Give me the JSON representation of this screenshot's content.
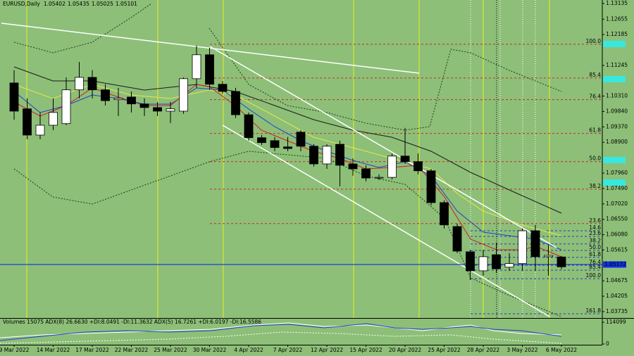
{
  "chart_data": {
    "type": "candlestick",
    "symbol": "EURUSD,Daily",
    "categories": [
      "9 Mar 2022",
      null,
      null,
      "14 Mar 2022",
      null,
      null,
      "17 Mar 2022",
      null,
      null,
      "22 Mar 2022",
      null,
      null,
      "25 Mar 2022",
      null,
      null,
      "30 Mar 2022",
      null,
      null,
      "4 Apr 2022",
      null,
      null,
      "7 Apr 2022",
      null,
      null,
      "12 Apr 2022",
      null,
      null,
      "15 Apr 2022",
      null,
      null,
      "20 Apr 2022",
      null,
      null,
      "25 Apr 2022",
      null,
      null,
      "28 Apr 2022",
      null,
      null,
      "3 May 2022",
      null,
      null,
      "6 May 2022"
    ],
    "open": [
      1.1071,
      1.0992,
      1.0912,
      1.0942,
      1.0947,
      1.105,
      1.1088,
      1.105,
      1.102,
      1.1028,
      1.1007,
      1.0996,
      1.0985,
      1.0985,
      1.1084,
      1.1157,
      1.1067,
      1.1045,
      1.0974,
      1.0904,
      1.0895,
      1.0876,
      1.0921,
      1.0878,
      1.0824,
      1.0884,
      1.0824,
      1.0809,
      1.0781,
      1.0783,
      1.0848,
      1.0831,
      1.0803,
      1.0706,
      1.0633,
      1.0556,
      1.0498,
      1.0547,
      1.0509,
      1.052,
      1.062,
      1.0541,
      1.05402
    ],
    "high": [
      1.111,
      1.1024,
      1.0981,
      1.1024,
      1.1088,
      1.1135,
      1.111,
      1.1067,
      1.1056,
      1.1045,
      1.1024,
      1.1013,
      1.1013,
      1.1088,
      1.1185,
      1.1178,
      1.1077,
      1.1056,
      1.0981,
      1.0912,
      1.0906,
      1.0906,
      1.0927,
      1.0884,
      1.0884,
      1.0895,
      1.0841,
      1.082,
      1.0792,
      1.0856,
      1.0934,
      1.0856,
      1.0809,
      1.0713,
      1.0642,
      1.0562,
      1.0562,
      1.0584,
      1.0552,
      1.0627,
      1.0638,
      1.0577,
      1.05435
    ],
    "low": [
      1.0959,
      1.0899,
      1.0899,
      1.0927,
      1.0942,
      1.1024,
      1.1024,
      1.1002,
      1.097,
      1.0981,
      1.097,
      1.097,
      1.0949,
      1.0977,
      1.1056,
      1.105,
      1.1039,
      1.0964,
      1.0895,
      1.0882,
      1.0863,
      1.0863,
      1.0863,
      1.0816,
      1.0809,
      1.0756,
      1.0788,
      1.0771,
      1.0775,
      1.0777,
      1.0824,
      1.0792,
      1.0698,
      1.0627,
      1.0552,
      1.047,
      1.0483,
      1.0492,
      1.0498,
      1.0498,
      1.0498,
      1.0483,
      1.05025
    ],
    "close": [
      1.0985,
      1.0912,
      1.0942,
      1.0981,
      1.105,
      1.1088,
      1.105,
      1.1017,
      1.1024,
      1.1007,
      1.0996,
      1.0985,
      1.0992,
      1.1084,
      1.1157,
      1.1067,
      1.1045,
      1.0974,
      1.0904,
      1.0889,
      1.0874,
      1.0871,
      1.0878,
      1.0824,
      1.0878,
      1.082,
      1.0809,
      1.0781,
      1.0783,
      1.0848,
      1.0831,
      1.0803,
      1.0706,
      1.0638,
      1.0558,
      1.0498,
      1.0541,
      1.0504,
      1.052,
      1.062,
      1.0541,
      1.0545,
      1.05101
    ],
    "up_color": "#ffffff",
    "down_color": "#000000",
    "ylim": [
      1.0354,
      1.1324
    ],
    "yticks": [
      1.13135,
      1.12655,
      1.12185,
      1.11245,
      {
        "value": 1.1031,
        "label": "1.10310"
      },
      {
        "value": 1.0984,
        "label": "1.09840"
      },
      {
        "value": 1.0937,
        "label": "1.09370"
      },
      {
        "value": 1.089,
        "label": "1.08900"
      },
      {
        "value": 1.0796,
        "label": "1.07960"
      },
      {
        "value": 1.0749,
        "label": "1.07490"
      },
      {
        "value": 1.0702,
        "label": "1.07020"
      },
      {
        "value": 1.0655,
        "label": "1.06550"
      },
      {
        "value": 1.0608,
        "label": "1.06080"
      },
      1.05615,
      1.04675,
      1.04205,
      1.03735
    ],
    "current_price": 1.05172,
    "fib_sets": [
      {
        "color": "#c62f22",
        "levels": [
          {
            "label": "100.0",
            "price": 1.1189
          },
          {
            "label": "85.4",
            "price": 1.1086
          },
          {
            "label": "76.4",
            "price": 1.102
          },
          {
            "label": "61.8",
            "price": 1.0917
          },
          {
            "label": "50.0",
            "price": 1.0831
          },
          {
            "label": "38.2",
            "price": 1.0747
          },
          {
            "label": "23.6",
            "price": 1.0642
          }
        ]
      },
      {
        "color": "#1f3fbf",
        "levels": [
          {
            "label": "14.6",
            "price": 1.062
          },
          {
            "label": "23.6",
            "price": 1.0603
          },
          {
            "label": "38.2",
            "price": 1.058
          },
          {
            "label": "50.0",
            "price": 1.056
          },
          {
            "label": "61.8",
            "price": 1.0539
          },
          {
            "label": "76.4",
            "price": 1.0515
          },
          {
            "label": "85.4",
            "price": 1.05
          },
          {
            "label": "100.0",
            "price": 1.0474
          },
          {
            "label": "161.8",
            "price": 1.0367
          }
        ]
      }
    ],
    "indicator_label": "Volumes 15075  ADX(8) 26.6630 +DI:8.0491 -DI:11.3632 ADX(5) 16.7261 +DI:6.0197 -DI:16.5586",
    "indicator_ylim": [
      0,
      114099
    ],
    "indicator_yticks": [
      0,
      114099
    ]
  }
}
